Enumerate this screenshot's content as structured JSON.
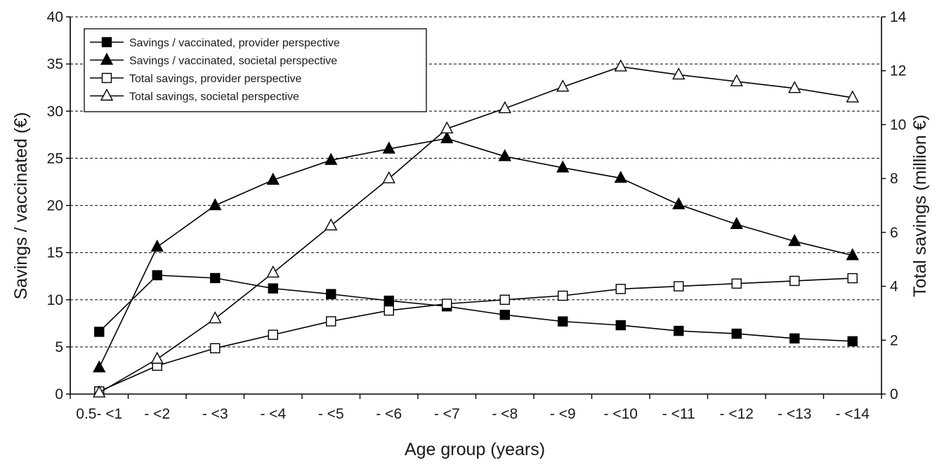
{
  "chart_data": {
    "type": "line",
    "xlabel": "Age group (years)",
    "ylabel_left": "Savings / vaccinated (€)",
    "ylabel_right": "Total savings (million €)",
    "categories": [
      "0.5- <1",
      "- <2",
      "- <3",
      "- <4",
      "- <5",
      "- <6",
      "- <7",
      "- <8",
      "- <9",
      "- <10",
      "- <11",
      "- <12",
      "- <13",
      "- <14"
    ],
    "ylim_left": [
      0,
      40
    ],
    "yticks_left": [
      0,
      5,
      10,
      15,
      20,
      25,
      30,
      35,
      40
    ],
    "ylim_right": [
      0,
      14
    ],
    "yticks_right": [
      0,
      2,
      4,
      6,
      8,
      10,
      12,
      14
    ],
    "grid": "horizontal dashed at left-axis ticks",
    "legend_position": "top-left",
    "series": [
      {
        "name": "Savings / vaccinated, provider perspective",
        "axis": "left",
        "marker": "square-filled",
        "values": [
          6.6,
          12.6,
          12.3,
          11.2,
          10.6,
          9.9,
          9.3,
          8.4,
          7.7,
          7.3,
          6.7,
          6.4,
          5.9,
          5.6
        ]
      },
      {
        "name": "Savings / vaccinated, societal perspective",
        "axis": "left",
        "marker": "triangle-filled",
        "values": [
          2.8,
          15.6,
          20.0,
          22.7,
          24.8,
          26.0,
          27.1,
          25.2,
          24.0,
          22.9,
          20.1,
          18.0,
          16.2,
          14.7
        ]
      },
      {
        "name": "Total savings, provider perspective",
        "axis": "right",
        "marker": "square-open",
        "values": [
          0.1,
          1.05,
          1.7,
          2.2,
          2.7,
          3.1,
          3.35,
          3.5,
          3.65,
          3.9,
          4.0,
          4.1,
          4.2,
          4.3
        ]
      },
      {
        "name": "Total savings, societal perspective",
        "axis": "right",
        "marker": "triangle-open",
        "values": [
          0.05,
          1.3,
          2.8,
          4.5,
          6.25,
          8.0,
          9.85,
          10.6,
          11.4,
          12.15,
          11.85,
          11.6,
          11.35,
          11.0
        ]
      }
    ]
  }
}
